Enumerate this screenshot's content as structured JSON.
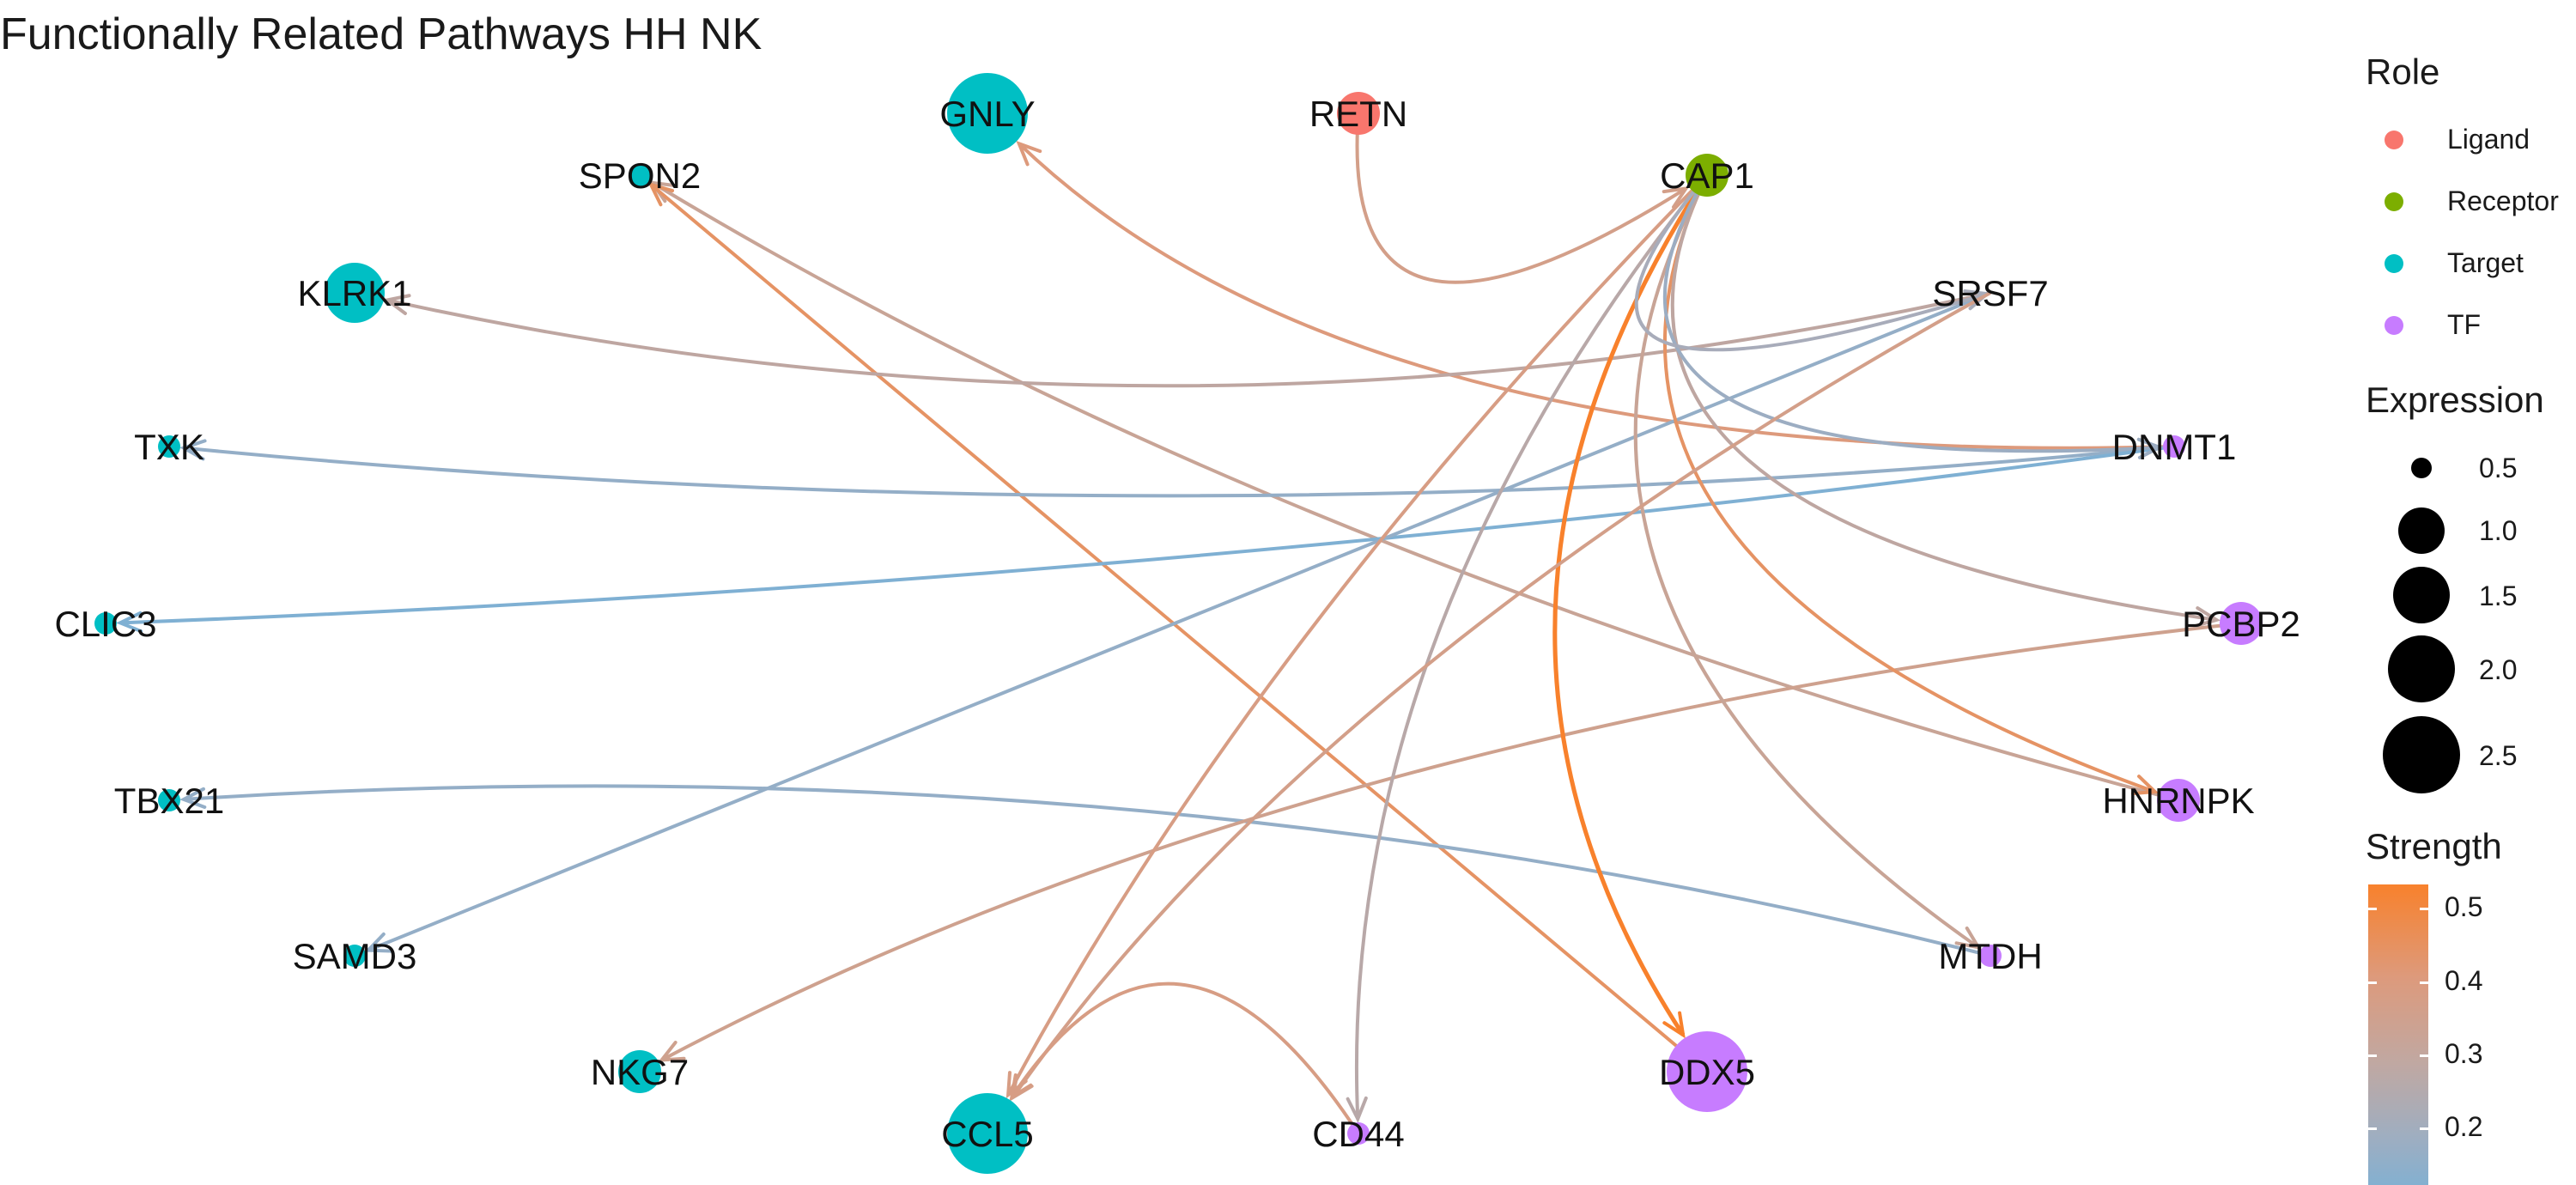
{
  "title": "Functionally Related Pathways HH NK",
  "colors": {
    "ligand": "#f8766d",
    "receptor": "#7cae00",
    "target": "#00bfc4",
    "tf": "#c77cff"
  },
  "nodes": [
    {
      "id": "GNLY",
      "role": "Target",
      "size": "large"
    },
    {
      "id": "RETN",
      "role": "Ligand",
      "size": "small"
    },
    {
      "id": "SPON2",
      "role": "Target",
      "size": "tiny"
    },
    {
      "id": "CAP1",
      "role": "Receptor",
      "size": "small"
    },
    {
      "id": "KLRK1",
      "role": "Target",
      "size": "medium"
    },
    {
      "id": "SRSF7",
      "role": "TF",
      "size": "none"
    },
    {
      "id": "TXK",
      "role": "Target",
      "size": "tiny"
    },
    {
      "id": "DNMT1",
      "role": "TF",
      "size": "tiny"
    },
    {
      "id": "CLIC3",
      "role": "Target",
      "size": "tiny"
    },
    {
      "id": "PCBP2",
      "role": "TF",
      "size": "small"
    },
    {
      "id": "TBX21",
      "role": "Target",
      "size": "tiny"
    },
    {
      "id": "HNRNPK",
      "role": "TF",
      "size": "small"
    },
    {
      "id": "SAMD3",
      "role": "Target",
      "size": "tiny"
    },
    {
      "id": "MTDH",
      "role": "TF",
      "size": "tiny"
    },
    {
      "id": "NKG7",
      "role": "Target",
      "size": "small"
    },
    {
      "id": "DDX5",
      "role": "TF",
      "size": "large"
    },
    {
      "id": "CCL5",
      "role": "Target",
      "size": "large"
    },
    {
      "id": "CD44",
      "role": "TF",
      "size": "tiny"
    }
  ],
  "edges": [
    {
      "from": "RETN",
      "to": "CAP1",
      "strength": 0.4
    },
    {
      "from": "DNMT1",
      "to": "GNLY",
      "strength": 0.45
    },
    {
      "from": "HNRNPK",
      "to": "SPON2",
      "strength": 0.35
    },
    {
      "from": "DDX5",
      "to": "SPON2",
      "strength": 0.48
    },
    {
      "from": "SRSF7",
      "to": "KLRK1",
      "strength": 0.32
    },
    {
      "from": "DNMT1",
      "to": "TXK",
      "strength": 0.2
    },
    {
      "from": "DNMT1",
      "to": "CLIC3",
      "strength": 0.15
    },
    {
      "from": "MTDH",
      "to": "TBX21",
      "strength": 0.2
    },
    {
      "from": "SRSF7",
      "to": "SAMD3",
      "strength": 0.2
    },
    {
      "from": "PCBP2",
      "to": "NKG7",
      "strength": 0.38
    },
    {
      "from": "CAP1",
      "to": "DDX5",
      "strength": 0.55
    },
    {
      "from": "CAP1",
      "to": "CCL5",
      "strength": 0.42
    },
    {
      "from": "CAP1",
      "to": "CD44",
      "strength": 0.3
    },
    {
      "from": "CAP1",
      "to": "HNRNPK",
      "strength": 0.48
    },
    {
      "from": "CAP1",
      "to": "MTDH",
      "strength": 0.35
    },
    {
      "from": "CAP1",
      "to": "PCBP2",
      "strength": 0.32
    },
    {
      "from": "CAP1",
      "to": "DNMT1",
      "strength": 0.22
    },
    {
      "from": "CAP1",
      "to": "SRSF7",
      "strength": 0.25
    },
    {
      "from": "SRSF7",
      "to": "CCL5",
      "strength": 0.4
    },
    {
      "from": "CD44",
      "to": "CCL5",
      "strength": 0.42
    }
  ],
  "legend": {
    "role_title": "Role",
    "roles": [
      {
        "label": "Ligand",
        "color": "#f8766d"
      },
      {
        "label": "Receptor",
        "color": "#7cae00"
      },
      {
        "label": "Target",
        "color": "#00bfc4"
      },
      {
        "label": "TF",
        "color": "#c77cff"
      }
    ],
    "expression_title": "Expression",
    "expression_levels": [
      "0.5",
      "1.0",
      "1.5",
      "2.0",
      "2.5"
    ],
    "strength_title": "Strength",
    "strength_ticks": [
      "0.5",
      "0.4",
      "0.3",
      "0.2"
    ]
  }
}
